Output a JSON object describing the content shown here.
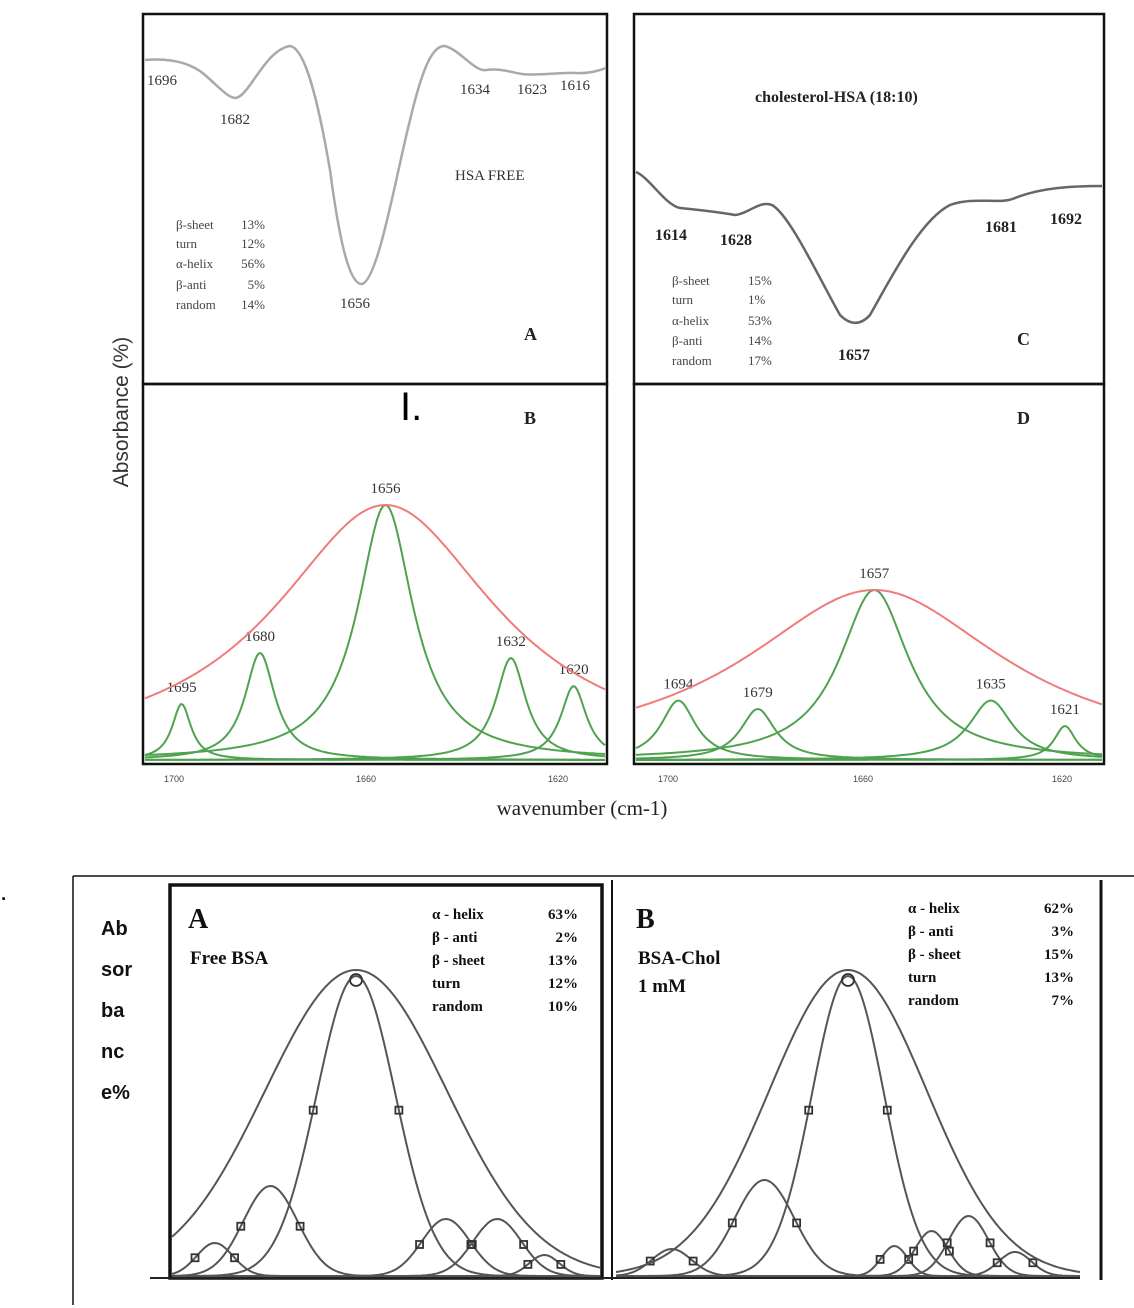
{
  "section_labels": {
    "top": "I.",
    "bottom": "."
  },
  "colors": {
    "frame": "#111111",
    "spectrum_gray": "#a9a9a9",
    "spectrum_dark": "#666666",
    "envelope_red": "#ef7b7b",
    "component_green": "#4fa24f",
    "bsa_curve": "#555555"
  },
  "top_figure": {
    "ylabel": "Absorbance (%)",
    "xlabel": "wavenumber (cm-1)",
    "x_ticks_left": [
      "1700",
      "1660",
      "1620"
    ],
    "x_ticks_right": [
      "1700",
      "1660",
      "1620"
    ]
  },
  "bottom_figure": {
    "ylabel_lines": [
      "Ab",
      "sor",
      "ba",
      "nc",
      "e%"
    ]
  },
  "chart_data": [
    {
      "type": "line",
      "panel": "A",
      "panel_label": "A",
      "title": "HSA FREE",
      "x_axis_direction": "decreasing",
      "peaks": [
        {
          "x": 1696,
          "label": "1696"
        },
        {
          "x": 1682,
          "label": "1682"
        },
        {
          "x": 1656,
          "label": "1656"
        },
        {
          "x": 1634,
          "label": "1634"
        },
        {
          "x": 1623,
          "label": "1623"
        },
        {
          "x": 1616,
          "label": "1616"
        }
      ],
      "composition": [
        {
          "name": "β-sheet",
          "value": "13%"
        },
        {
          "name": "turn",
          "value": "12%"
        },
        {
          "name": "α-helix",
          "value": "56%"
        },
        {
          "name": "β-anti",
          "value": "5%"
        },
        {
          "name": "random",
          "value": "14%"
        }
      ]
    },
    {
      "type": "line",
      "panel": "B",
      "panel_label": "B",
      "x_ticks": [
        1700,
        1660,
        1620
      ],
      "xlim": [
        1702,
        1614
      ],
      "components": [
        {
          "center": 1695,
          "label": "1695",
          "height": 0.22
        },
        {
          "center": 1680,
          "label": "1680",
          "height": 0.42
        },
        {
          "center": 1656,
          "label": "1656",
          "height": 1.0
        },
        {
          "center": 1632,
          "label": "1632",
          "height": 0.4
        },
        {
          "center": 1620,
          "label": "1620",
          "height": 0.29
        }
      ]
    },
    {
      "type": "line",
      "panel": "C",
      "panel_label": "C",
      "title": "cholesterol-HSA (18:10)",
      "x_axis_direction": "increasing",
      "peaks": [
        {
          "x": 1614,
          "label": "1614"
        },
        {
          "x": 1628,
          "label": "1628"
        },
        {
          "x": 1657,
          "label": "1657"
        },
        {
          "x": 1681,
          "label": "1681"
        },
        {
          "x": 1692,
          "label": "1692"
        }
      ],
      "composition": [
        {
          "name": "β-sheet",
          "value": "15%"
        },
        {
          "name": "turn",
          "value": "1%"
        },
        {
          "name": "α-helix",
          "value": "53%"
        },
        {
          "name": "β-anti",
          "value": "14%"
        },
        {
          "name": "random",
          "value": "17%"
        }
      ]
    },
    {
      "type": "line",
      "panel": "D",
      "panel_label": "D",
      "x_ticks": [
        1700,
        1660,
        1620
      ],
      "xlim": [
        1702,
        1614
      ],
      "components": [
        {
          "center": 1621,
          "label": "1621",
          "height": 0.2
        },
        {
          "center": 1635,
          "label": "1635",
          "height": 0.35
        },
        {
          "center": 1657,
          "label": "1657",
          "height": 1.0
        },
        {
          "center": 1679,
          "label": "1679",
          "height": 0.3
        },
        {
          "center": 1694,
          "label": "1694",
          "height": 0.35
        }
      ]
    },
    {
      "type": "line",
      "panel": "A",
      "panel_label": "A",
      "title": "Free BSA",
      "composition": [
        {
          "name": "α - helix",
          "value": "63%"
        },
        {
          "name": "β - anti",
          "value": "2%"
        },
        {
          "name": "β - sheet",
          "value": "13%"
        },
        {
          "name": "turn",
          "value": "12%"
        },
        {
          "name": "random",
          "value": "10%"
        }
      ],
      "components": [
        {
          "center": 0.1,
          "height": 0.11
        },
        {
          "center": 0.23,
          "height": 0.3
        },
        {
          "center": 0.43,
          "height": 1.0
        },
        {
          "center": 0.64,
          "height": 0.19
        },
        {
          "center": 0.76,
          "height": 0.19
        },
        {
          "center": 0.87,
          "height": 0.07
        }
      ]
    },
    {
      "type": "line",
      "panel": "B",
      "panel_label": "B",
      "title_lines": [
        "BSA-Chol",
        "1 mM"
      ],
      "composition": [
        {
          "name": "α - helix",
          "value": "62%"
        },
        {
          "name": "β - anti",
          "value": "3%"
        },
        {
          "name": "β - sheet",
          "value": "15%"
        },
        {
          "name": "turn",
          "value": "13%"
        },
        {
          "name": "random",
          "value": "7%"
        }
      ],
      "components": [
        {
          "center": 0.12,
          "height": 0.09
        },
        {
          "center": 0.32,
          "height": 0.32
        },
        {
          "center": 0.5,
          "height": 1.0
        },
        {
          "center": 0.6,
          "height": 0.1
        },
        {
          "center": 0.68,
          "height": 0.15
        },
        {
          "center": 0.76,
          "height": 0.2
        },
        {
          "center": 0.86,
          "height": 0.08
        }
      ]
    }
  ]
}
